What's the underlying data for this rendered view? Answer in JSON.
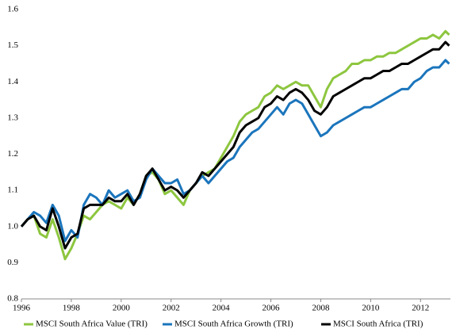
{
  "chart_data": {
    "type": "line",
    "x": [
      1996,
      1996.25,
      1996.5,
      1996.75,
      1997,
      1997.25,
      1997.5,
      1997.75,
      1998,
      1998.25,
      1998.5,
      1998.75,
      1999,
      1999.25,
      1999.5,
      1999.75,
      2000,
      2000.25,
      2000.5,
      2000.75,
      2001,
      2001.25,
      2001.5,
      2001.75,
      2002,
      2002.25,
      2002.5,
      2002.75,
      2003,
      2003.25,
      2003.5,
      2003.75,
      2004,
      2004.25,
      2004.5,
      2004.75,
      2005,
      2005.25,
      2005.5,
      2005.75,
      2006,
      2006.25,
      2006.5,
      2006.75,
      2007,
      2007.25,
      2007.5,
      2007.75,
      2008,
      2008.25,
      2008.5,
      2008.75,
      2009,
      2009.25,
      2009.5,
      2009.75,
      2010,
      2010.25,
      2010.5,
      2010.75,
      2011,
      2011.25,
      2011.5,
      2011.75,
      2012,
      2012.25,
      2012.5,
      2012.75,
      2013,
      2013.15
    ],
    "series": [
      {
        "name": "MSCI South Africa Value (TRI)",
        "color": "#8dc63f",
        "values": [
          1.0,
          1.02,
          1.03,
          0.98,
          0.97,
          1.02,
          0.97,
          0.91,
          0.94,
          0.98,
          1.03,
          1.02,
          1.04,
          1.06,
          1.07,
          1.06,
          1.05,
          1.08,
          1.06,
          1.09,
          1.14,
          1.15,
          1.13,
          1.09,
          1.1,
          1.08,
          1.06,
          1.1,
          1.12,
          1.14,
          1.15,
          1.16,
          1.19,
          1.22,
          1.25,
          1.29,
          1.31,
          1.32,
          1.33,
          1.36,
          1.37,
          1.39,
          1.38,
          1.39,
          1.4,
          1.39,
          1.39,
          1.36,
          1.33,
          1.38,
          1.41,
          1.42,
          1.43,
          1.45,
          1.45,
          1.46,
          1.46,
          1.47,
          1.47,
          1.48,
          1.48,
          1.49,
          1.5,
          1.51,
          1.52,
          1.52,
          1.53,
          1.52,
          1.54,
          1.53
        ]
      },
      {
        "name": "MSCI South Africa Growth (TRI)",
        "color": "#1b75bc",
        "values": [
          1.0,
          1.02,
          1.04,
          1.03,
          1.01,
          1.06,
          1.03,
          0.96,
          0.99,
          0.97,
          1.06,
          1.09,
          1.08,
          1.06,
          1.1,
          1.08,
          1.09,
          1.1,
          1.07,
          1.08,
          1.13,
          1.16,
          1.14,
          1.12,
          1.12,
          1.13,
          1.09,
          1.1,
          1.12,
          1.14,
          1.12,
          1.14,
          1.16,
          1.18,
          1.19,
          1.22,
          1.24,
          1.26,
          1.27,
          1.29,
          1.31,
          1.33,
          1.31,
          1.34,
          1.35,
          1.34,
          1.31,
          1.28,
          1.25,
          1.26,
          1.28,
          1.29,
          1.3,
          1.31,
          1.32,
          1.33,
          1.33,
          1.34,
          1.35,
          1.36,
          1.37,
          1.38,
          1.38,
          1.4,
          1.41,
          1.43,
          1.44,
          1.44,
          1.46,
          1.45
        ]
      },
      {
        "name": "MSCI South Africa (TRI)",
        "color": "#000000",
        "values": [
          1.0,
          1.02,
          1.03,
          1.0,
          0.99,
          1.05,
          1.0,
          0.94,
          0.97,
          0.98,
          1.05,
          1.06,
          1.06,
          1.06,
          1.08,
          1.07,
          1.07,
          1.09,
          1.06,
          1.09,
          1.14,
          1.16,
          1.13,
          1.1,
          1.11,
          1.1,
          1.08,
          1.1,
          1.12,
          1.15,
          1.14,
          1.16,
          1.18,
          1.2,
          1.22,
          1.26,
          1.28,
          1.29,
          1.3,
          1.33,
          1.34,
          1.36,
          1.35,
          1.37,
          1.38,
          1.37,
          1.35,
          1.32,
          1.31,
          1.33,
          1.36,
          1.37,
          1.38,
          1.39,
          1.4,
          1.41,
          1.41,
          1.42,
          1.43,
          1.43,
          1.44,
          1.45,
          1.45,
          1.46,
          1.47,
          1.48,
          1.49,
          1.49,
          1.51,
          1.5
        ]
      }
    ],
    "xlim": [
      1996,
      2013.2
    ],
    "xticks": [
      1996,
      1998,
      2000,
      2002,
      2004,
      2006,
      2008,
      2010,
      2012
    ],
    "ylim": [
      0.8,
      1.6
    ],
    "yticks": [
      0.8,
      0.9,
      {
        "value": 1,
        "label": "1.0"
      },
      1.1,
      1.2,
      1.3,
      1.4,
      1.5,
      1.6
    ],
    "grid": false,
    "legend": "bottom"
  }
}
